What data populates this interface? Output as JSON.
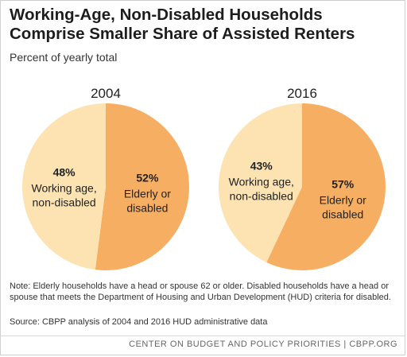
{
  "header": {
    "title_line1": "Working-Age, Non-Disabled Households",
    "title_line2": "Comprise Smaller Share of Assisted Renters",
    "subtitle": "Percent of yearly total"
  },
  "chart_data": [
    {
      "type": "pie",
      "title": "2004",
      "slices": [
        {
          "label_lines": [
            "Elderly or",
            "disabled"
          ],
          "value": 52,
          "value_label": "52%",
          "color": "#f5ae62"
        },
        {
          "label_lines": [
            "Working age,",
            "non-disabled"
          ],
          "value": 48,
          "value_label": "48%",
          "color": "#fde3b2"
        }
      ]
    },
    {
      "type": "pie",
      "title": "2016",
      "slices": [
        {
          "label_lines": [
            "Elderly or",
            "disabled"
          ],
          "value": 57,
          "value_label": "57%",
          "color": "#f5ae62"
        },
        {
          "label_lines": [
            "Working age,",
            "non-disabled"
          ],
          "value": 43,
          "value_label": "43%",
          "color": "#fde3b2"
        }
      ]
    }
  ],
  "notes": {
    "note": "Note: Elderly households have a head or spouse 62 or older. Disabled households have a head or spouse that meets the Department of Housing and Urban Development (HUD) criteria for disabled.",
    "source": "Source: CBPP analysis of 2004 and 2016 HUD administrative data"
  },
  "footer": {
    "text": "CENTER ON BUDGET AND POLICY PRIORITIES | CBPP.ORG"
  }
}
